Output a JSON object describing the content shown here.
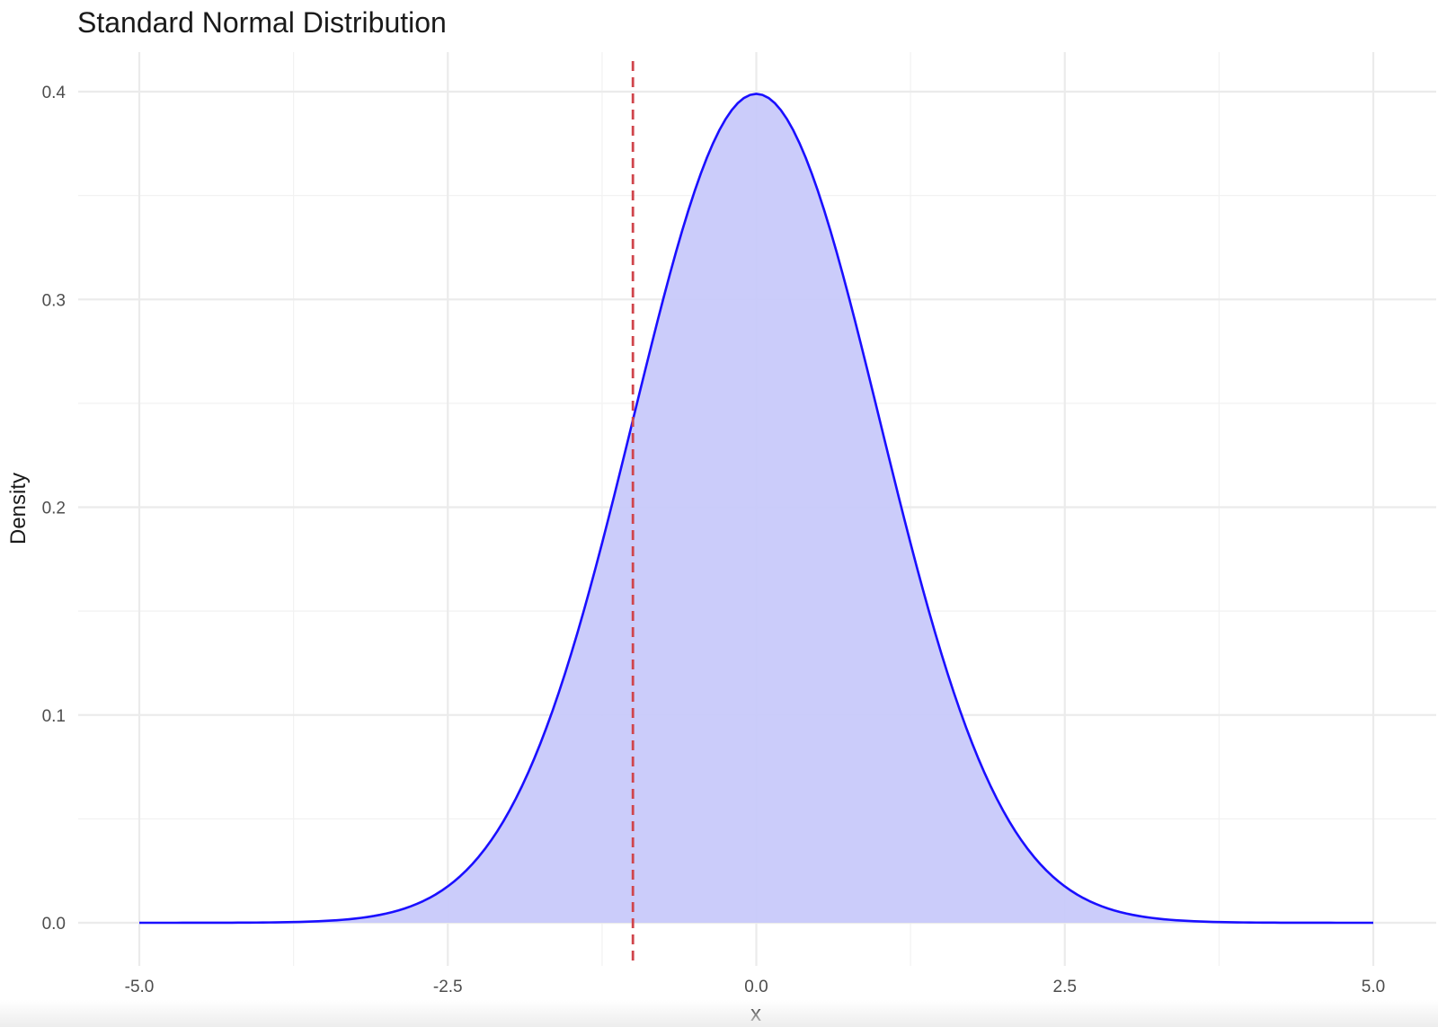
{
  "chart_data": {
    "type": "area",
    "title": "Standard Normal Distribution",
    "xlabel": "x",
    "ylabel": "Density",
    "xlim": [
      -5.0,
      5.0
    ],
    "ylim": [
      0.0,
      0.4
    ],
    "x_ticks": [
      "-5.0",
      "-2.5",
      "0.0",
      "2.5",
      "5.0"
    ],
    "y_ticks": [
      "0.0",
      "0.1",
      "0.2",
      "0.3",
      "0.4"
    ],
    "x_tick_values": [
      -5.0,
      -2.5,
      0.0,
      2.5,
      5.0
    ],
    "y_tick_values": [
      0.0,
      0.1,
      0.2,
      0.3,
      0.4
    ],
    "x_minor_values": [
      -3.75,
      -1.25,
      1.25,
      3.75
    ],
    "y_minor_values": [
      0.05,
      0.15,
      0.25,
      0.35
    ],
    "grid": true,
    "series": [
      {
        "distribution": "standard normal",
        "mean": 0,
        "sd": 1,
        "x_range": [
          -5.0,
          5.0
        ],
        "line_color": "#1a0fff",
        "fill_color": "#c8c9fa"
      }
    ],
    "vline": {
      "x": -1.0,
      "color": "#d0454c",
      "style": "dashed"
    }
  }
}
